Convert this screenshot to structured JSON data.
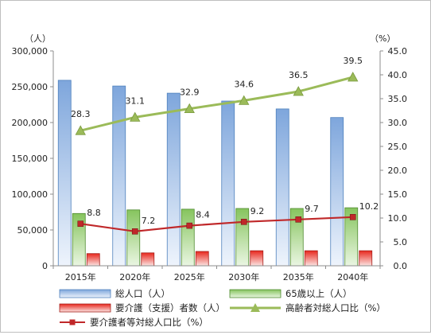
{
  "chart_data": {
    "type": "bar",
    "categories": [
      "2015年",
      "2020年",
      "2025年",
      "2030年",
      "2035年",
      "2040年"
    ],
    "y_left": {
      "unit": "（人）",
      "ylim": [
        0,
        300000
      ],
      "ticks": [
        0,
        50000,
        100000,
        150000,
        200000,
        250000,
        300000
      ],
      "tick_labels": [
        "0",
        "50,000",
        "100,000",
        "150,000",
        "200,000",
        "250,000",
        "300,000"
      ]
    },
    "y_right": {
      "unit": "（%）",
      "ylim": [
        0,
        45
      ],
      "ticks": [
        0,
        5,
        10,
        15,
        20,
        25,
        30,
        35,
        40,
        45
      ],
      "tick_labels": [
        "0.0",
        "5.0",
        "10.0",
        "15.0",
        "20.0",
        "25.0",
        "30.0",
        "35.0",
        "40.0",
        "45.0"
      ]
    },
    "series": [
      {
        "name": "総人口（人）",
        "kind": "bar",
        "axis": "left",
        "color": "#8eb4e3",
        "values": [
          259000,
          251000,
          241000,
          230000,
          219000,
          207000
        ]
      },
      {
        "name": "65歳以上（人）",
        "kind": "bar",
        "axis": "left",
        "color": "#8ccc6a",
        "values": [
          73000,
          78000,
          79000,
          80000,
          80000,
          81000
        ]
      },
      {
        "name": "要介護（支援）者数（人）",
        "kind": "bar",
        "axis": "left",
        "color": "#e0302a",
        "values": [
          17000,
          18000,
          20000,
          21000,
          21000,
          21000
        ]
      },
      {
        "name": "高齢者対総人口比（%）",
        "kind": "line",
        "axis": "right",
        "color": "#9bbb59",
        "marker": "triangle",
        "values": [
          28.3,
          31.1,
          32.9,
          34.6,
          36.5,
          39.5
        ],
        "labels": [
          "28.3",
          "31.1",
          "32.9",
          "34.6",
          "36.5",
          "39.5"
        ]
      },
      {
        "name": "要介護者等対総人口比（%）",
        "kind": "line",
        "axis": "right",
        "color": "#c0282a",
        "marker": "square",
        "values": [
          8.8,
          7.2,
          8.4,
          9.2,
          9.7,
          10.2
        ],
        "labels": [
          "8.8",
          "7.2",
          "8.4",
          "9.2",
          "9.7",
          "10.2"
        ]
      }
    ],
    "grid": false,
    "legend_position": "bottom"
  }
}
